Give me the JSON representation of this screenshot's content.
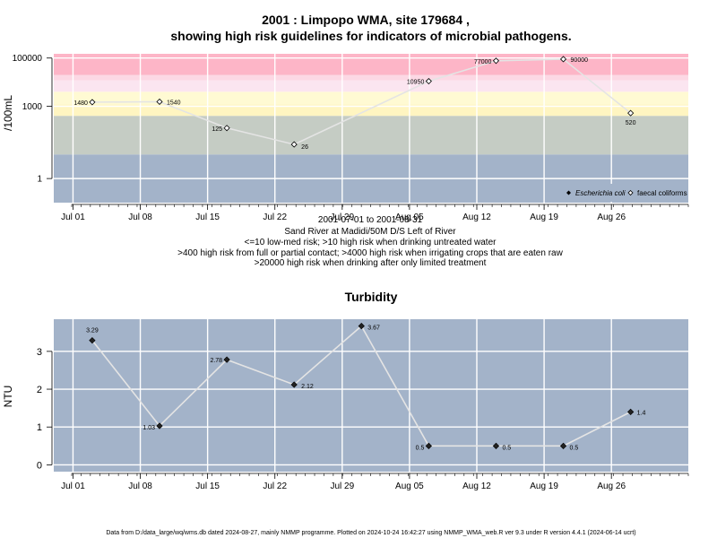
{
  "chart_data": [
    {
      "type": "line",
      "title": "2001 : Limpopo WMA, site 179684 ,",
      "subtitle": "showing high risk guidelines for indicators of microbial pathogens.",
      "ylabel": "/100mL",
      "yscale": "log",
      "ylim": [
        0.1,
        150000
      ],
      "y_ticks": [
        1,
        1000,
        100000
      ],
      "y_tick_labels": [
        "1",
        "1000",
        "100000"
      ],
      "x_tick_labels": [
        "Jul 01",
        "Jul 08",
        "Jul 15",
        "Jul 22",
        "Jul 29",
        "Aug 05",
        "Aug 12",
        "Aug 19",
        "Aug 26"
      ],
      "x_tick_dates": [
        "2001-07-01",
        "2001-07-08",
        "2001-07-15",
        "2001-07-22",
        "2001-07-29",
        "2001-08-05",
        "2001-08-12",
        "2001-08-19",
        "2001-08-26"
      ],
      "xlim": [
        "2001-06-29",
        "2001-09-03"
      ],
      "grid": true,
      "legend_placement": "bottom-right",
      "legend": [
        "Escherichia coli",
        "faecal coliforms"
      ],
      "risk_bands": [
        {
          "from": 0.1,
          "to": 10,
          "color": "#a3b3c9"
        },
        {
          "from": 10,
          "to": 400,
          "color": "#c5ccc4"
        },
        {
          "from": 400,
          "to": 1200,
          "color": "#fff5c1"
        },
        {
          "from": 1200,
          "to": 4000,
          "color": "#fffad3"
        },
        {
          "from": 4000,
          "to": 12000,
          "color": "#fbe5f0"
        },
        {
          "from": 12000,
          "to": 20000,
          "color": "#fcd8e4"
        },
        {
          "from": 20000,
          "to": 150000,
          "color": "#fdb5c7"
        }
      ],
      "series": [
        {
          "name": "faecal coliforms",
          "marker": "open-diamond",
          "points": [
            {
              "x": "2001-07-03",
              "y": 1480,
              "label": "1480"
            },
            {
              "x": "2001-07-10",
              "y": 1540,
              "label": "1540"
            },
            {
              "x": "2001-07-17",
              "y": 125,
              "label": "125"
            },
            {
              "x": "2001-07-24",
              "y": 26,
              "label": "26"
            },
            {
              "x": "2001-08-07",
              "y": 10950,
              "label": "10950"
            },
            {
              "x": "2001-08-14",
              "y": 77000,
              "label": "77000"
            },
            {
              "x": "2001-08-21",
              "y": 90000,
              "label": "90000"
            },
            {
              "x": "2001-08-28",
              "y": 520,
              "label": "520"
            }
          ]
        }
      ],
      "caption": [
        "2001-07-01 to 2001-08-31",
        "Sand River at Madidi/50M D/S Left of River",
        "<=10 low-med risk; >10 high risk when drinking untreated water",
        ">400 high risk from full or partial contact; >4000 high risk when irrigating crops that are eaten raw",
        ">20000 high risk when drinking after only limited treatment"
      ]
    },
    {
      "type": "line",
      "title": "Turbidity",
      "ylabel": "NTU",
      "ylim": [
        -0.18,
        3.85
      ],
      "y_ticks": [
        0,
        1,
        2,
        3
      ],
      "y_tick_labels": [
        "0",
        "1",
        "2",
        "3"
      ],
      "x_tick_labels": [
        "Jul 01",
        "Jul 08",
        "Jul 15",
        "Jul 22",
        "Jul 29",
        "Aug 05",
        "Aug 12",
        "Aug 19",
        "Aug 26"
      ],
      "x_tick_dates": [
        "2001-07-01",
        "2001-07-08",
        "2001-07-15",
        "2001-07-22",
        "2001-07-29",
        "2001-08-05",
        "2001-08-12",
        "2001-08-19",
        "2001-08-26"
      ],
      "xlim": [
        "2001-06-29",
        "2001-09-03"
      ],
      "grid": true,
      "background": "#a3b3c9",
      "series": [
        {
          "marker": "filled-diamond",
          "points": [
            {
              "x": "2001-07-03",
              "y": 3.29,
              "label": "3.29"
            },
            {
              "x": "2001-07-10",
              "y": 1.03,
              "label": "1.03"
            },
            {
              "x": "2001-07-17",
              "y": 2.78,
              "label": "2.78"
            },
            {
              "x": "2001-07-24",
              "y": 2.12,
              "label": "2.12"
            },
            {
              "x": "2001-07-31",
              "y": 3.67,
              "label": "3.67"
            },
            {
              "x": "2001-08-07",
              "y": 0.5,
              "label": "0.5"
            },
            {
              "x": "2001-08-14",
              "y": 0.5,
              "label": "0.5"
            },
            {
              "x": "2001-08-21",
              "y": 0.5,
              "label": "0.5"
            },
            {
              "x": "2001-08-28",
              "y": 1.4,
              "label": "1.4"
            }
          ]
        }
      ]
    }
  ],
  "footer": "Data from D:/data_large/wq/wms.db dated 2024-08-27, mainly NMMP programme. Plotted on 2024-10-24 16:42:27 using NMMP_WMA_web.R ver 9.3 under R version 4.4.1 (2024-06-14 ucrt)"
}
